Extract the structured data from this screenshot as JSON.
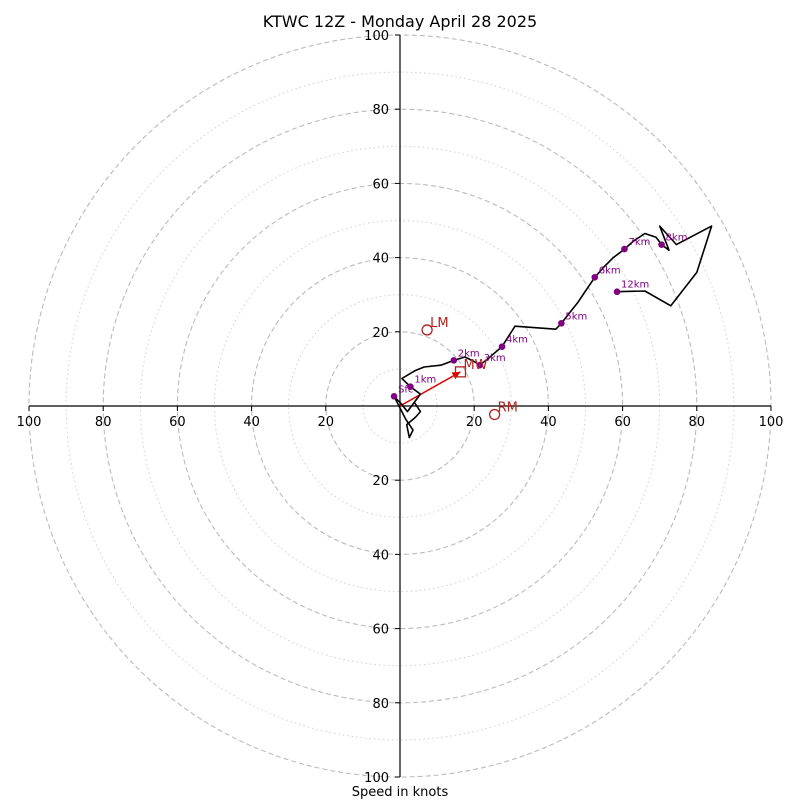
{
  "chart_data": {
    "type": "hodograph",
    "title": "KTWC 12Z - Monday April 28 2025",
    "xlabel": "Speed in knots",
    "units": "knots",
    "xlim": [
      -100,
      100
    ],
    "ylim": [
      -100,
      100
    ],
    "x_ticks": [
      {
        "value": -100,
        "label": "100"
      },
      {
        "value": -80,
        "label": "80"
      },
      {
        "value": -60,
        "label": "60"
      },
      {
        "value": -40,
        "label": "40"
      },
      {
        "value": -20,
        "label": "20"
      },
      {
        "value": 20,
        "label": "20"
      },
      {
        "value": 40,
        "label": "40"
      },
      {
        "value": 60,
        "label": "60"
      },
      {
        "value": 80,
        "label": "80"
      },
      {
        "value": 100,
        "label": "100"
      }
    ],
    "y_ticks": [
      {
        "value": 100,
        "label": "100"
      },
      {
        "value": 80,
        "label": "80"
      },
      {
        "value": 60,
        "label": "60"
      },
      {
        "value": 40,
        "label": "40"
      },
      {
        "value": 20,
        "label": "20"
      },
      {
        "value": -20,
        "label": "20"
      },
      {
        "value": -40,
        "label": "40"
      },
      {
        "value": -60,
        "label": "60"
      },
      {
        "value": -80,
        "label": "80"
      },
      {
        "value": -100,
        "label": "100"
      }
    ],
    "rings_major": [
      20,
      40,
      60,
      80,
      100
    ],
    "rings_minor": [
      10,
      30,
      50,
      70,
      90
    ],
    "grid": true,
    "colors": {
      "trace": "#000000",
      "markers": "#800080",
      "storm_motion": "#b22222",
      "shear_vector": "#e00000",
      "grid": "#bbbbbb",
      "axes": "#000000"
    },
    "hodograph_trace": [
      [
        -1.6,
        2.6
      ],
      [
        0.5,
        0.4
      ],
      [
        2,
        -1.5
      ],
      [
        5.5,
        3.2
      ],
      [
        2.8,
        5.2
      ],
      [
        0.5,
        7.4
      ],
      [
        4,
        9.5
      ],
      [
        6.5,
        10.5
      ],
      [
        11,
        11
      ],
      [
        14.5,
        12.3
      ],
      [
        17.5,
        13.2
      ],
      [
        20,
        12
      ],
      [
        21.5,
        11
      ],
      [
        24,
        13
      ],
      [
        27.5,
        16
      ],
      [
        31,
        21.5
      ],
      [
        42,
        20.7
      ],
      [
        43.5,
        22.3
      ],
      [
        46,
        25.5
      ],
      [
        48,
        28
      ],
      [
        50,
        31
      ],
      [
        52.5,
        34.7
      ],
      [
        55,
        37.5
      ],
      [
        57.5,
        40
      ],
      [
        60.5,
        42.3
      ],
      [
        63,
        44.5
      ],
      [
        66,
        46.5
      ],
      [
        69,
        45.5
      ],
      [
        70.5,
        43.5
      ],
      [
        72.5,
        42
      ],
      [
        70,
        48.5
      ],
      [
        74.5,
        43.5
      ],
      [
        84,
        48.5
      ],
      [
        80,
        36
      ],
      [
        73,
        27
      ],
      [
        66,
        31
      ],
      [
        58.5,
        30.8
      ]
    ],
    "trace_lower_hook": [
      [
        -1.6,
        2.6
      ],
      [
        1.5,
        -3.5
      ],
      [
        3.5,
        -6.5
      ],
      [
        2.5,
        -8.5
      ],
      [
        1.8,
        -5
      ],
      [
        4.2,
        -3
      ],
      [
        5.5,
        -1.5
      ],
      [
        4,
        0.8
      ]
    ],
    "height_markers": [
      {
        "label": "Sfc",
        "u": -1.6,
        "v": 2.6
      },
      {
        "label": "1km",
        "u": 2.8,
        "v": 5.2
      },
      {
        "label": "2km",
        "u": 14.5,
        "v": 12.3
      },
      {
        "label": "3km",
        "u": 21.5,
        "v": 11
      },
      {
        "label": "4km",
        "u": 27.5,
        "v": 16
      },
      {
        "label": "5km",
        "u": 43.5,
        "v": 22.3
      },
      {
        "label": "6km",
        "u": 52.5,
        "v": 34.7
      },
      {
        "label": "7km",
        "u": 60.5,
        "v": 42.3
      },
      {
        "label": "8km",
        "u": 70.5,
        "v": 43.5
      },
      {
        "label": "12km",
        "u": 58.5,
        "v": 30.8
      }
    ],
    "storm_motion": [
      {
        "label": "LM",
        "u": 7.3,
        "v": 20.5,
        "marker": "circle"
      },
      {
        "label": "MW",
        "u": 16.3,
        "v": 9.2,
        "marker": "square"
      },
      {
        "label": "RM",
        "u": 25.5,
        "v": -2.3,
        "marker": "circle"
      }
    ],
    "shear_vector": {
      "from": [
        0,
        0
      ],
      "to": [
        16.3,
        9.2
      ]
    }
  }
}
